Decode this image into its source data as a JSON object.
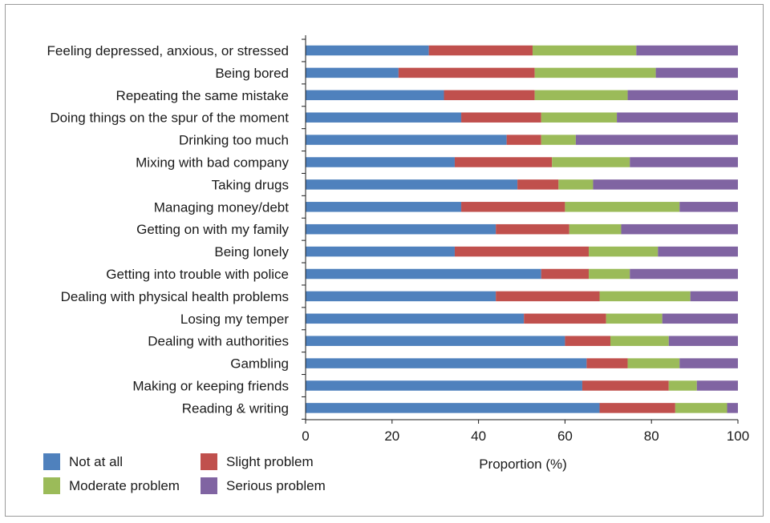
{
  "chart_data": {
    "type": "bar",
    "orientation": "horizontal",
    "stacked": true,
    "title": "",
    "xlabel": "Proportion (%)",
    "ylabel": "",
    "xlim": [
      0,
      100
    ],
    "xticks": [
      0,
      20,
      40,
      60,
      80,
      100
    ],
    "grid": false,
    "legend_position": "bottom-left",
    "categories": [
      "Feeling depressed, anxious, or stressed",
      "Being bored",
      "Repeating the same mistake",
      "Doing things on the spur of the moment",
      "Drinking too much",
      "Mixing with bad company",
      "Taking drugs",
      "Managing money/debt",
      "Getting on with my family",
      "Being lonely",
      "Getting into trouble with police",
      "Dealing with physical health problems",
      "Losing my temper",
      "Dealing with authorities",
      "Gambling",
      "Making or keeping friends",
      "Reading & writing"
    ],
    "series": [
      {
        "name": "Not at all",
        "color": "#4f81bd",
        "values": [
          28.5,
          21.5,
          32,
          36,
          46.5,
          34.5,
          49,
          36,
          44,
          34.5,
          54.5,
          44,
          50.5,
          60,
          65,
          64,
          68
        ]
      },
      {
        "name": "Slight problem",
        "color": "#c0504d",
        "values": [
          24,
          31.5,
          21,
          18.5,
          8,
          22.5,
          9.5,
          24,
          17,
          31,
          11,
          24,
          19,
          10.5,
          9.5,
          20,
          17.5
        ]
      },
      {
        "name": "Moderate problem",
        "color": "#9bbb59",
        "values": [
          24,
          28,
          21.5,
          17.5,
          8,
          18,
          8,
          26.5,
          12,
          16,
          9.5,
          21,
          13,
          13.5,
          12,
          6.5,
          12
        ]
      },
      {
        "name": "Serious problem",
        "color": "#8064a2",
        "values": [
          23.5,
          19,
          25.5,
          28,
          37.5,
          25,
          33.5,
          13.5,
          27,
          18.5,
          25,
          11,
          17.5,
          16,
          13.5,
          9.5,
          2.5
        ]
      }
    ]
  }
}
